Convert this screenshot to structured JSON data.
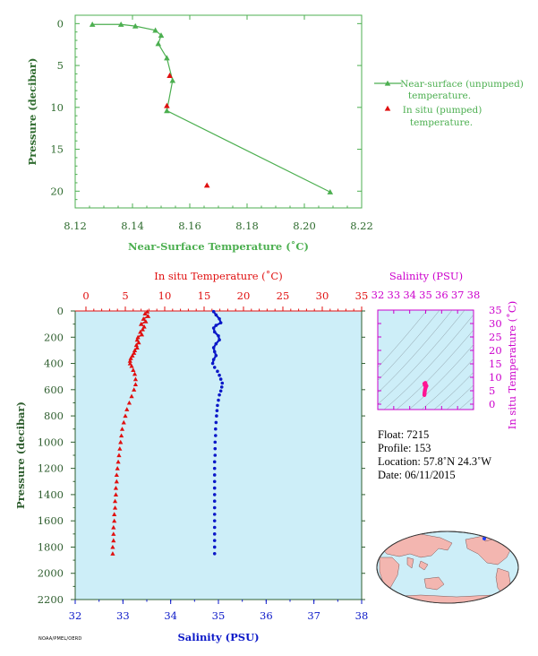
{
  "colors": {
    "green": "#4caf50",
    "darkgreen": "#2e6b2e",
    "red": "#e01010",
    "blue": "#0b18c8",
    "magenta": "#cc00cc",
    "panel": "#cdeef8"
  },
  "chart_data": [
    {
      "type": "line",
      "xlabel": "Near-Surface Temperature (˚C)",
      "ylabel": "Pressure (decibar)",
      "xlim": [
        8.12,
        8.22
      ],
      "ylim": [
        22,
        -1
      ],
      "x_ticks": [
        "8.12",
        "8.14",
        "8.16",
        "8.18",
        "8.20",
        "8.22"
      ],
      "y_ticks": [
        "0",
        "5",
        "10",
        "15",
        "20"
      ],
      "series": [
        {
          "name": "Near-surface (unpumped) temperature.",
          "marker": "triangle",
          "points": [
            [
              8.126,
              0.1
            ],
            [
              8.136,
              0.1
            ],
            [
              8.141,
              0.3
            ],
            [
              8.148,
              0.8
            ],
            [
              8.15,
              1.4
            ],
            [
              8.149,
              2.4
            ],
            [
              8.152,
              4.1
            ],
            [
              8.154,
              6.8
            ],
            [
              8.152,
              10.4
            ],
            [
              8.209,
              20.1
            ]
          ]
        },
        {
          "name": "In situ (pumped) temperature.",
          "marker": "triangle",
          "points": [
            [
              8.153,
              6.2
            ],
            [
              8.152,
              9.8
            ],
            [
              8.166,
              19.3
            ]
          ]
        }
      ],
      "legend": [
        "Near-surface (unpumped)",
        "temperature.",
        "In situ (pumped)",
        "temperature."
      ]
    },
    {
      "type": "line",
      "title_top": "In situ Temperature (˚C)",
      "xlabel": "Salinity (PSU)",
      "ylabel": "Pressure (decibar)",
      "temp_lim": [
        -2,
        35
      ],
      "sal_lim": [
        32,
        38
      ],
      "ylim": [
        2200,
        0
      ],
      "temp_ticks": [
        "0",
        "5",
        "10",
        "15",
        "20",
        "25",
        "30",
        "35"
      ],
      "sal_ticks": [
        "32",
        "33",
        "34",
        "35",
        "36",
        "37",
        "38"
      ],
      "y_ticks": [
        "0",
        "200",
        "400",
        "600",
        "800",
        "1000",
        "1200",
        "1400",
        "1600",
        "1800",
        "2000",
        "2200"
      ],
      "temperature": [
        [
          7.8,
          5
        ],
        [
          7.5,
          20
        ],
        [
          7.9,
          40
        ],
        [
          7.3,
          60
        ],
        [
          7.6,
          80
        ],
        [
          7.0,
          100
        ],
        [
          7.4,
          120
        ],
        [
          7.2,
          140
        ],
        [
          6.9,
          160
        ],
        [
          7.1,
          180
        ],
        [
          6.6,
          200
        ],
        [
          6.5,
          220
        ],
        [
          6.7,
          240
        ],
        [
          6.4,
          260
        ],
        [
          6.5,
          280
        ],
        [
          6.2,
          300
        ],
        [
          6.1,
          320
        ],
        [
          5.9,
          340
        ],
        [
          5.7,
          360
        ],
        [
          5.6,
          380
        ],
        [
          5.6,
          400
        ],
        [
          5.8,
          420
        ],
        [
          6.0,
          450
        ],
        [
          6.2,
          480
        ],
        [
          6.3,
          520
        ],
        [
          6.3,
          560
        ],
        [
          6.1,
          600
        ],
        [
          5.8,
          650
        ],
        [
          5.5,
          700
        ],
        [
          5.2,
          750
        ],
        [
          5.0,
          800
        ],
        [
          4.8,
          850
        ],
        [
          4.6,
          900
        ],
        [
          4.5,
          950
        ],
        [
          4.4,
          1000
        ],
        [
          4.3,
          1050
        ],
        [
          4.2,
          1100
        ],
        [
          4.1,
          1150
        ],
        [
          4.0,
          1200
        ],
        [
          3.9,
          1250
        ],
        [
          3.9,
          1300
        ],
        [
          3.8,
          1350
        ],
        [
          3.8,
          1400
        ],
        [
          3.7,
          1450
        ],
        [
          3.7,
          1500
        ],
        [
          3.6,
          1550
        ],
        [
          3.6,
          1600
        ],
        [
          3.5,
          1650
        ],
        [
          3.5,
          1700
        ],
        [
          3.5,
          1750
        ],
        [
          3.4,
          1800
        ],
        [
          3.4,
          1850
        ]
      ],
      "salinity": [
        [
          34.9,
          5
        ],
        [
          34.95,
          30
        ],
        [
          35.02,
          60
        ],
        [
          35.05,
          90
        ],
        [
          34.95,
          110
        ],
        [
          34.9,
          130
        ],
        [
          34.92,
          160
        ],
        [
          35.0,
          190
        ],
        [
          35.02,
          220
        ],
        [
          34.95,
          250
        ],
        [
          34.9,
          280
        ],
        [
          34.92,
          310
        ],
        [
          34.95,
          340
        ],
        [
          34.9,
          370
        ],
        [
          34.88,
          400
        ],
        [
          34.92,
          430
        ],
        [
          34.98,
          460
        ],
        [
          35.02,
          490
        ],
        [
          35.05,
          520
        ],
        [
          35.08,
          550
        ],
        [
          35.07,
          580
        ],
        [
          35.05,
          610
        ],
        [
          35.02,
          640
        ],
        [
          35.0,
          680
        ],
        [
          34.98,
          720
        ],
        [
          34.97,
          760
        ],
        [
          34.96,
          800
        ],
        [
          34.95,
          850
        ],
        [
          34.94,
          900
        ],
        [
          34.94,
          950
        ],
        [
          34.93,
          1000
        ],
        [
          34.93,
          1050
        ],
        [
          34.93,
          1100
        ],
        [
          34.92,
          1150
        ],
        [
          34.92,
          1200
        ],
        [
          34.92,
          1250
        ],
        [
          34.92,
          1300
        ],
        [
          34.92,
          1350
        ],
        [
          34.92,
          1400
        ],
        [
          34.92,
          1450
        ],
        [
          34.92,
          1500
        ],
        [
          34.92,
          1550
        ],
        [
          34.92,
          1600
        ],
        [
          34.92,
          1650
        ],
        [
          34.92,
          1700
        ],
        [
          34.92,
          1750
        ],
        [
          34.92,
          1800
        ],
        [
          34.92,
          1850
        ]
      ]
    },
    {
      "type": "scatter",
      "xlabel": "Salinity (PSU)",
      "ylabel": "In situ Temperature (˚C)",
      "xlim": [
        32,
        38
      ],
      "ylim": [
        -2,
        35
      ],
      "x_ticks": [
        "32",
        "33",
        "34",
        "35",
        "36",
        "37",
        "38"
      ],
      "y_ticks": [
        "0",
        "5",
        "10",
        "15",
        "20",
        "25",
        "30",
        "35"
      ],
      "points": [
        [
          34.92,
          3.4
        ],
        [
          34.93,
          3.8
        ],
        [
          34.93,
          4.2
        ],
        [
          34.94,
          4.6
        ],
        [
          34.95,
          5.0
        ],
        [
          34.96,
          5.4
        ],
        [
          34.98,
          5.8
        ],
        [
          35.0,
          6.2
        ],
        [
          35.02,
          6.5
        ],
        [
          35.05,
          6.8
        ],
        [
          34.95,
          7.0
        ],
        [
          35.0,
          7.3
        ],
        [
          34.92,
          7.6
        ],
        [
          34.98,
          7.9
        ]
      ]
    }
  ],
  "float_info": {
    "float": "Float:  7215",
    "profile": "Profile:  153",
    "location": "Location:  57.8˚N  24.3˚W",
    "date": "Date:  06/11/2015"
  },
  "footer_code": "NOAA/PMEL/OERD"
}
